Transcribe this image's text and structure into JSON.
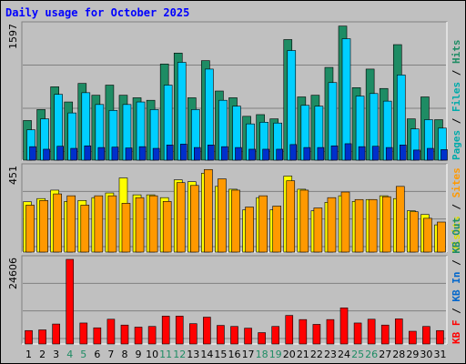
{
  "title": "Daily usage for October 2025",
  "chart_data": [
    {
      "type": "bar",
      "panel": "pages-files-hits",
      "ymax_label": "1597",
      "ylim": [
        0,
        1597
      ],
      "legend": [
        "Pages",
        "Files",
        "Hits"
      ],
      "legend_separator": " / ",
      "categories": [
        "1",
        "2",
        "3",
        "4",
        "5",
        "6",
        "7",
        "8",
        "9",
        "10",
        "11",
        "12",
        "13",
        "14",
        "15",
        "16",
        "17",
        "18",
        "19",
        "20",
        "21",
        "22",
        "23",
        "24",
        "25",
        "26",
        "27",
        "28",
        "29",
        "30",
        "31"
      ],
      "weekend_days": [
        "4",
        "5",
        "11",
        "12",
        "18",
        "19",
        "25",
        "26"
      ],
      "series": [
        {
          "name": "Hits",
          "color": "#1e8c64",
          "values": [
            470,
            600,
            870,
            690,
            910,
            770,
            890,
            770,
            740,
            710,
            1140,
            1270,
            740,
            1180,
            820,
            740,
            520,
            540,
            490,
            1430,
            750,
            770,
            1100,
            1590,
            860,
            1080,
            850,
            1370,
            490,
            750,
            480
          ]
        },
        {
          "name": "Files",
          "color": "#00cfff",
          "values": [
            360,
            490,
            780,
            560,
            800,
            660,
            590,
            660,
            690,
            600,
            890,
            1160,
            600,
            1080,
            710,
            640,
            430,
            450,
            440,
            1300,
            650,
            640,
            920,
            1440,
            760,
            790,
            700,
            1010,
            370,
            480,
            380
          ]
        },
        {
          "name": "Pages",
          "color": "#0030cc",
          "values": [
            160,
            130,
            165,
            140,
            170,
            150,
            155,
            145,
            160,
            140,
            180,
            190,
            150,
            180,
            160,
            150,
            130,
            130,
            130,
            185,
            150,
            150,
            170,
            195,
            160,
            165,
            150,
            180,
            120,
            140,
            125
          ]
        }
      ]
    },
    {
      "type": "bar",
      "panel": "visits-sites",
      "ymax_label": "451",
      "ylim": [
        0,
        451
      ],
      "legend": [
        "Visits",
        "Sites"
      ],
      "legend_separator": " / ",
      "categories": [
        "1",
        "2",
        "3",
        "4",
        "5",
        "6",
        "7",
        "8",
        "9",
        "10",
        "11",
        "12",
        "13",
        "14",
        "15",
        "16",
        "17",
        "18",
        "19",
        "20",
        "21",
        "22",
        "23",
        "24",
        "25",
        "26",
        "27",
        "28",
        "29",
        "30",
        "31"
      ],
      "series": [
        {
          "name": "Visits",
          "color": "#ffff00",
          "values": [
            268,
            285,
            330,
            270,
            275,
            290,
            315,
            395,
            305,
            305,
            290,
            385,
            375,
            420,
            350,
            335,
            225,
            290,
            225,
            405,
            335,
            220,
            265,
            300,
            270,
            280,
            300,
            285,
            220,
            200,
            145
          ]
        },
        {
          "name": "Sites",
          "color": "#ff9900",
          "values": [
            250,
            275,
            310,
            300,
            250,
            300,
            300,
            260,
            290,
            300,
            270,
            370,
            355,
            440,
            390,
            330,
            240,
            300,
            245,
            380,
            330,
            235,
            290,
            320,
            280,
            280,
            295,
            350,
            215,
            180,
            160
          ]
        }
      ]
    },
    {
      "type": "bar",
      "panel": "kbytes",
      "ymax_label": "24606",
      "ylim": [
        0,
        24606
      ],
      "legend": [
        "KB F",
        "KB In",
        "KB Out"
      ],
      "legend_separator": " / ",
      "categories": [
        "1",
        "2",
        "3",
        "4",
        "5",
        "6",
        "7",
        "8",
        "9",
        "10",
        "11",
        "12",
        "13",
        "14",
        "15",
        "16",
        "17",
        "18",
        "19",
        "20",
        "21",
        "22",
        "23",
        "24",
        "25",
        "26",
        "27",
        "28",
        "29",
        "30",
        "31"
      ],
      "series": [
        {
          "name": "KB F",
          "color": "#ff0000",
          "values": [
            3900,
            4100,
            5800,
            24606,
            6100,
            4700,
            7200,
            5500,
            4900,
            5100,
            8100,
            8100,
            5900,
            7800,
            5400,
            5100,
            4600,
            3300,
            5100,
            8300,
            7100,
            5700,
            7100,
            10500,
            6100,
            7200,
            5500,
            7300,
            3700,
            5100,
            3900
          ]
        }
      ]
    }
  ]
}
